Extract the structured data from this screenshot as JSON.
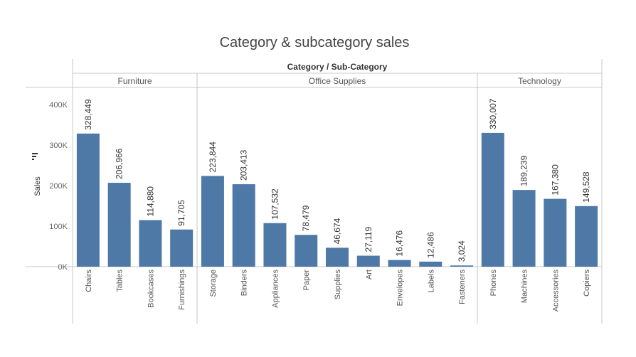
{
  "chart_data": {
    "type": "bar",
    "title": "Category & subcategory sales",
    "header_title": "Category / Sub-Category",
    "ylabel": "Sales",
    "ylim": [
      0,
      450000
    ],
    "yticks": [
      0,
      100000,
      200000,
      300000,
      400000
    ],
    "ytick_labels": [
      "0K",
      "100K",
      "200K",
      "300K",
      "400K"
    ],
    "bar_color": "#4e79a7",
    "grid": false,
    "groups": [
      {
        "name": "Furniture",
        "categories": [
          "Chairs",
          "Tables",
          "Bookcases",
          "Furnishings"
        ],
        "values": [
          328449,
          206966,
          114880,
          91705
        ],
        "value_labels": [
          "328,449",
          "206,966",
          "114,880",
          "91,705"
        ]
      },
      {
        "name": "Office Supplies",
        "categories": [
          "Storage",
          "Binders",
          "Appliances",
          "Paper",
          "Supplies",
          "Art",
          "Envelopes",
          "Labels",
          "Fasteners"
        ],
        "values": [
          223844,
          203413,
          107532,
          78479,
          46674,
          27119,
          16476,
          12486,
          3024
        ],
        "value_labels": [
          "223,844",
          "203,413",
          "107,532",
          "78,479",
          "46,674",
          "27,119",
          "16,476",
          "12,486",
          "3,024"
        ]
      },
      {
        "name": "Technology",
        "categories": [
          "Phones",
          "Machines",
          "Accessories",
          "Copiers"
        ],
        "values": [
          330007,
          189239,
          167380,
          149528
        ],
        "value_labels": [
          "330,007",
          "189,239",
          "167,380",
          "149,528"
        ]
      }
    ]
  }
}
